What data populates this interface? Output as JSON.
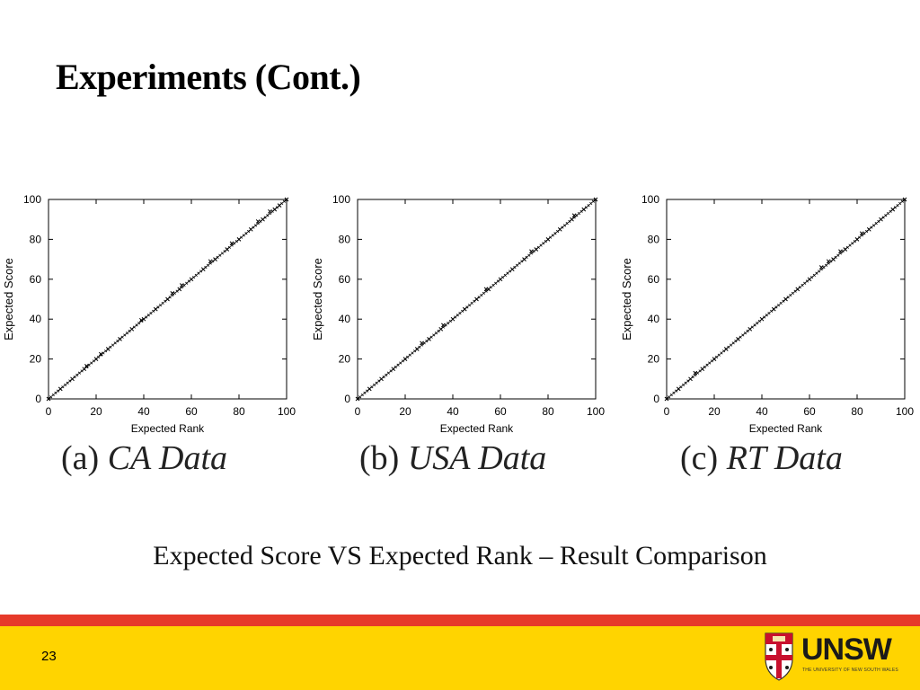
{
  "slide": {
    "title": "Experiments (Cont.)",
    "caption": "Expected Score VS Expected Rank – Result Comparison",
    "page_number": "23"
  },
  "logo": {
    "wordmark": "UNSW",
    "tagline": "THE UNIVERSITY OF NEW SOUTH WALES"
  },
  "colors": {
    "footer_red": "#e63a2a",
    "footer_yellow": "#ffd400"
  },
  "chart_data": [
    {
      "type": "scatter",
      "tag": "(a)",
      "name": "CA Data",
      "xlabel": "Expected Rank",
      "ylabel": "Expected Score",
      "xlim": [
        0,
        100
      ],
      "ylim": [
        0,
        100
      ],
      "xticks": [
        0,
        20,
        40,
        60,
        80,
        100
      ],
      "yticks": [
        0,
        20,
        40,
        60,
        80,
        100
      ],
      "grid": false,
      "trend": "points lie on the diagonal y = x",
      "points": [
        [
          0,
          0
        ],
        [
          5,
          5
        ],
        [
          10,
          10
        ],
        [
          15,
          15
        ],
        [
          16,
          16.5
        ],
        [
          20,
          20
        ],
        [
          22,
          22.5
        ],
        [
          25,
          25
        ],
        [
          30,
          30
        ],
        [
          35,
          35
        ],
        [
          39,
          39.5
        ],
        [
          40,
          40
        ],
        [
          45,
          45
        ],
        [
          50,
          50
        ],
        [
          52,
          53
        ],
        [
          55,
          55
        ],
        [
          56,
          57
        ],
        [
          60,
          60
        ],
        [
          65,
          65
        ],
        [
          68,
          69
        ],
        [
          70,
          70
        ],
        [
          75,
          75
        ],
        [
          77,
          78
        ],
        [
          80,
          80
        ],
        [
          85,
          85
        ],
        [
          88,
          89
        ],
        [
          90,
          90
        ],
        [
          93,
          94
        ],
        [
          95,
          95
        ],
        [
          97,
          97
        ],
        [
          100,
          100
        ]
      ]
    },
    {
      "type": "scatter",
      "tag": "(b)",
      "name": "USA Data",
      "xlabel": "Expected Rank",
      "ylabel": "Expected Score",
      "xlim": [
        0,
        100
      ],
      "ylim": [
        0,
        100
      ],
      "xticks": [
        0,
        20,
        40,
        60,
        80,
        100
      ],
      "yticks": [
        0,
        20,
        40,
        60,
        80,
        100
      ],
      "grid": false,
      "trend": "points lie on the diagonal y = x",
      "points": [
        [
          0,
          0
        ],
        [
          5,
          5
        ],
        [
          10,
          10
        ],
        [
          15,
          15
        ],
        [
          20,
          20
        ],
        [
          25,
          25
        ],
        [
          27,
          28
        ],
        [
          30,
          30
        ],
        [
          35,
          35
        ],
        [
          36,
          37
        ],
        [
          40,
          40
        ],
        [
          45,
          45
        ],
        [
          50,
          50
        ],
        [
          54,
          55
        ],
        [
          55,
          55
        ],
        [
          60,
          60
        ],
        [
          65,
          65
        ],
        [
          70,
          70
        ],
        [
          73,
          74
        ],
        [
          75,
          75
        ],
        [
          80,
          80
        ],
        [
          85,
          85
        ],
        [
          90,
          90
        ],
        [
          91,
          92
        ],
        [
          95,
          95
        ],
        [
          100,
          100
        ]
      ]
    },
    {
      "type": "scatter",
      "tag": "(c)",
      "name": "RT Data",
      "xlabel": "Expected Rank",
      "ylabel": "Expected Score",
      "xlim": [
        0,
        100
      ],
      "ylim": [
        0,
        100
      ],
      "xticks": [
        0,
        20,
        40,
        60,
        80,
        100
      ],
      "yticks": [
        0,
        20,
        40,
        60,
        80,
        100
      ],
      "grid": false,
      "trend": "points lie on the diagonal y = x",
      "points": [
        [
          0,
          0
        ],
        [
          5,
          5
        ],
        [
          10,
          10
        ],
        [
          12,
          13
        ],
        [
          15,
          15
        ],
        [
          20,
          20
        ],
        [
          25,
          25
        ],
        [
          30,
          30
        ],
        [
          35,
          35
        ],
        [
          40,
          40
        ],
        [
          45,
          45
        ],
        [
          50,
          50
        ],
        [
          55,
          55
        ],
        [
          60,
          60
        ],
        [
          65,
          66
        ],
        [
          68,
          69
        ],
        [
          70,
          70
        ],
        [
          73,
          74
        ],
        [
          75,
          75
        ],
        [
          80,
          80
        ],
        [
          82,
          83
        ],
        [
          85,
          85
        ],
        [
          90,
          90
        ],
        [
          95,
          95
        ],
        [
          100,
          100
        ]
      ]
    }
  ]
}
